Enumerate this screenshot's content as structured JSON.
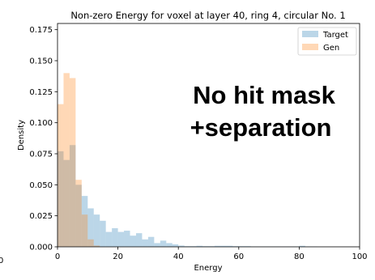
{
  "chart_data": {
    "type": "bar",
    "title": "Non-zero Energy for voxel at layer 40, ring 4, circular No. 1",
    "xlabel": "Energy",
    "ylabel": "Density",
    "xlim": [
      0,
      100
    ],
    "ylim": [
      0,
      0.18
    ],
    "xticks": [
      "0",
      "20",
      "40",
      "60",
      "80",
      "100"
    ],
    "yticks": [
      "0.000",
      "0.025",
      "0.050",
      "0.075",
      "0.100",
      "0.125",
      "0.150",
      "0.175"
    ],
    "left_cutoff_tick": "0",
    "bin_width": 2,
    "legend": {
      "position": "top-right",
      "entries": [
        "Target",
        "Gen"
      ]
    },
    "series": [
      {
        "name": "Target",
        "color": "#1f77b4",
        "alpha": 0.3,
        "bin_starts": [
          0,
          2,
          4,
          6,
          8,
          10,
          12,
          14,
          16,
          18,
          20,
          22,
          24,
          26,
          28,
          30,
          32,
          34,
          36,
          38,
          40,
          42,
          44,
          46,
          48,
          50,
          52,
          54,
          56,
          58,
          60,
          62,
          64,
          66,
          68,
          70,
          72,
          74,
          76,
          78,
          80,
          82,
          84
        ],
        "values": [
          0.077,
          0.07,
          0.082,
          0.05,
          0.041,
          0.031,
          0.026,
          0.021,
          0.012,
          0.015,
          0.012,
          0.013,
          0.009,
          0.011,
          0.006,
          0.008,
          0.003,
          0.005,
          0.003,
          0.002,
          0.001,
          0.0005,
          0.0005,
          0.0008,
          0.0005,
          0.0005,
          0.0008,
          0.0008,
          0.0008,
          0.0005,
          0.0005,
          0.0005,
          0.0003,
          0.0003,
          0.0003,
          0.0003,
          0.0003,
          0.0002,
          0.0002,
          0.0003,
          0.0008,
          0.0003,
          0.0002
        ]
      },
      {
        "name": "Gen",
        "color": "#ff7f0e",
        "alpha": 0.3,
        "bin_starts": [
          0,
          2,
          4,
          6,
          8,
          10,
          12
        ],
        "values": [
          0.115,
          0.14,
          0.136,
          0.054,
          0.026,
          0.006,
          0.001
        ]
      }
    ]
  },
  "overlay_text": [
    "No hit mask",
    "+separation"
  ]
}
